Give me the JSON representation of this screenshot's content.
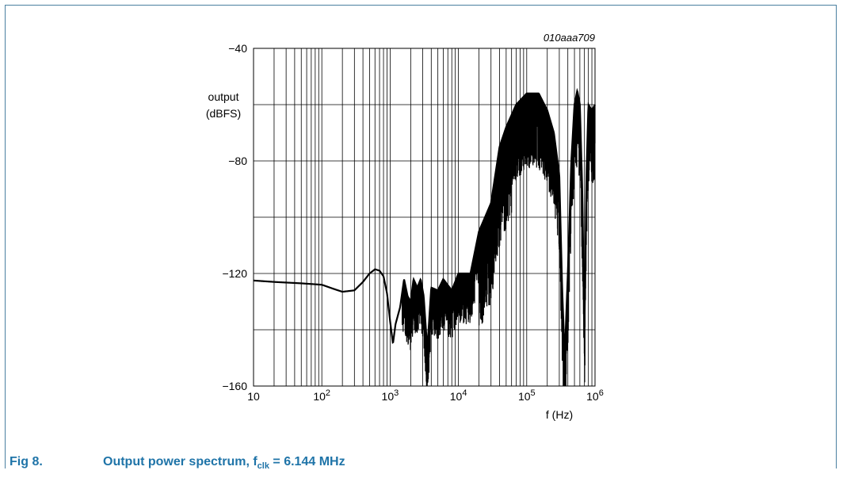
{
  "figure": {
    "number_label": "Fig 8.",
    "title_main": "Output power spectrum, f",
    "title_sub": "clk",
    "title_rest": " = 6.144 MHz",
    "code": "010aaa709",
    "accent_color": "#1f74a8"
  },
  "chart_data": {
    "type": "line",
    "xscale": "log",
    "xlim": [
      10,
      1000000
    ],
    "ylim": [
      -160,
      -40
    ],
    "grid": true,
    "xlabel": "f (Hz)",
    "ylabel_line1": "output",
    "ylabel_line2": "(dBFS)",
    "y_ticks": [
      {
        "value": -40,
        "label": "−40"
      },
      {
        "value": -80,
        "label": "−80"
      },
      {
        "value": -120,
        "label": "−120"
      },
      {
        "value": -160,
        "label": "−160"
      }
    ],
    "x_ticks": [
      {
        "value": 10,
        "base": "10",
        "exp": ""
      },
      {
        "value": 100,
        "base": "10",
        "exp": "2"
      },
      {
        "value": 1000,
        "base": "10",
        "exp": "3"
      },
      {
        "value": 10000,
        "base": "10",
        "exp": "4"
      },
      {
        "value": 100000,
        "base": "10",
        "exp": "5"
      },
      {
        "value": 1000000,
        "base": "10",
        "exp": "6"
      }
    ],
    "series": [
      {
        "envelope": [
          [
            10,
            -122.5
          ],
          [
            20,
            -123
          ],
          [
            50,
            -123.5
          ],
          [
            100,
            -124
          ],
          [
            150,
            -125.5
          ],
          [
            200,
            -126.5
          ],
          [
            300,
            -126
          ],
          [
            400,
            -123
          ],
          [
            500,
            -120
          ],
          [
            600,
            -118.5
          ],
          [
            700,
            -119
          ],
          [
            800,
            -121
          ],
          [
            900,
            -127
          ],
          [
            1000,
            -137
          ],
          [
            1100,
            -145
          ],
          [
            1200,
            -138
          ],
          [
            1400,
            -132
          ],
          [
            1600,
            -122
          ],
          [
            1800,
            -128
          ],
          [
            2000,
            -130
          ],
          [
            2200,
            -122
          ],
          [
            2500,
            -125
          ],
          [
            2800,
            -122
          ],
          [
            3100,
            -128
          ],
          [
            3500,
            -147
          ],
          [
            4000,
            -125
          ],
          [
            5000,
            -126
          ],
          [
            6000,
            -122
          ],
          [
            8000,
            -126
          ],
          [
            10000,
            -120
          ],
          [
            15000,
            -120
          ],
          [
            20000,
            -105
          ],
          [
            30000,
            -95
          ],
          [
            40000,
            -75
          ],
          [
            50000,
            -68
          ],
          [
            70000,
            -60
          ],
          [
            100000,
            -56
          ],
          [
            150000,
            -56
          ],
          [
            200000,
            -62
          ],
          [
            250000,
            -70
          ],
          [
            300000,
            -85
          ],
          [
            330000,
            -125
          ],
          [
            360000,
            -150
          ],
          [
            400000,
            -120
          ],
          [
            450000,
            -80
          ],
          [
            500000,
            -60
          ],
          [
            550000,
            -55
          ],
          [
            600000,
            -60
          ],
          [
            650000,
            -90
          ],
          [
            700000,
            -140
          ],
          [
            750000,
            -85
          ],
          [
            800000,
            -60
          ],
          [
            900000,
            -62
          ],
          [
            1000000,
            -60
          ]
        ]
      }
    ]
  }
}
